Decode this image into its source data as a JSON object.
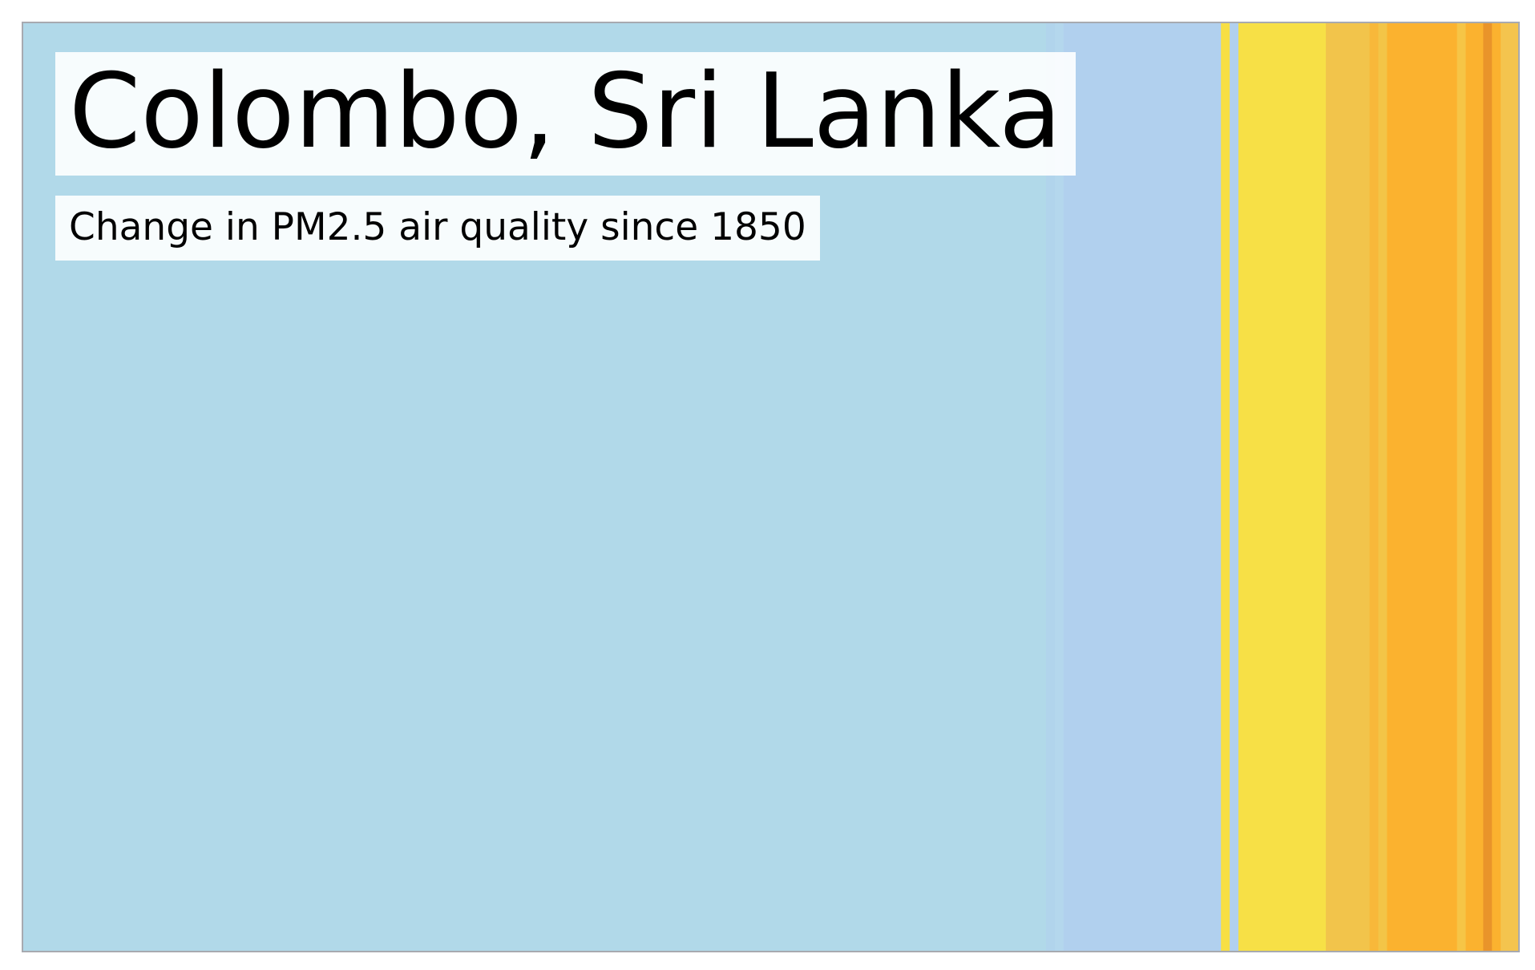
{
  "chart_data": {
    "type": "heatmap",
    "title": "Colombo, Sri Lanka",
    "subtitle": "Change in PM2.5 air quality since 1850",
    "x_range": [
      1850,
      2021
    ],
    "stripes": [
      {
        "start": 1850,
        "end": 1967,
        "color": "#b1d9e9"
      },
      {
        "start": 1967,
        "end": 1968,
        "color": "#b1d4ec"
      },
      {
        "start": 1968,
        "end": 1969,
        "color": "#b4d7ed"
      },
      {
        "start": 1969,
        "end": 1987,
        "color": "#b1d0ee"
      },
      {
        "start": 1987,
        "end": 1988,
        "color": "#f7df44"
      },
      {
        "start": 1988,
        "end": 1989,
        "color": "#b1d0ee"
      },
      {
        "start": 1989,
        "end": 1999,
        "color": "#f7e046"
      },
      {
        "start": 1999,
        "end": 2004,
        "color": "#f2c44b"
      },
      {
        "start": 2004,
        "end": 2005,
        "color": "#f8b83a"
      },
      {
        "start": 2005,
        "end": 2006,
        "color": "#f3c547"
      },
      {
        "start": 2006,
        "end": 2014,
        "color": "#fbb22f"
      },
      {
        "start": 2014,
        "end": 2015,
        "color": "#f6c546"
      },
      {
        "start": 2015,
        "end": 2017,
        "color": "#fbb22f"
      },
      {
        "start": 2017,
        "end": 2018,
        "color": "#e9942a"
      },
      {
        "start": 2018,
        "end": 2019,
        "color": "#fbb22f"
      },
      {
        "start": 2019,
        "end": 2021,
        "color": "#f4c44e"
      }
    ]
  }
}
